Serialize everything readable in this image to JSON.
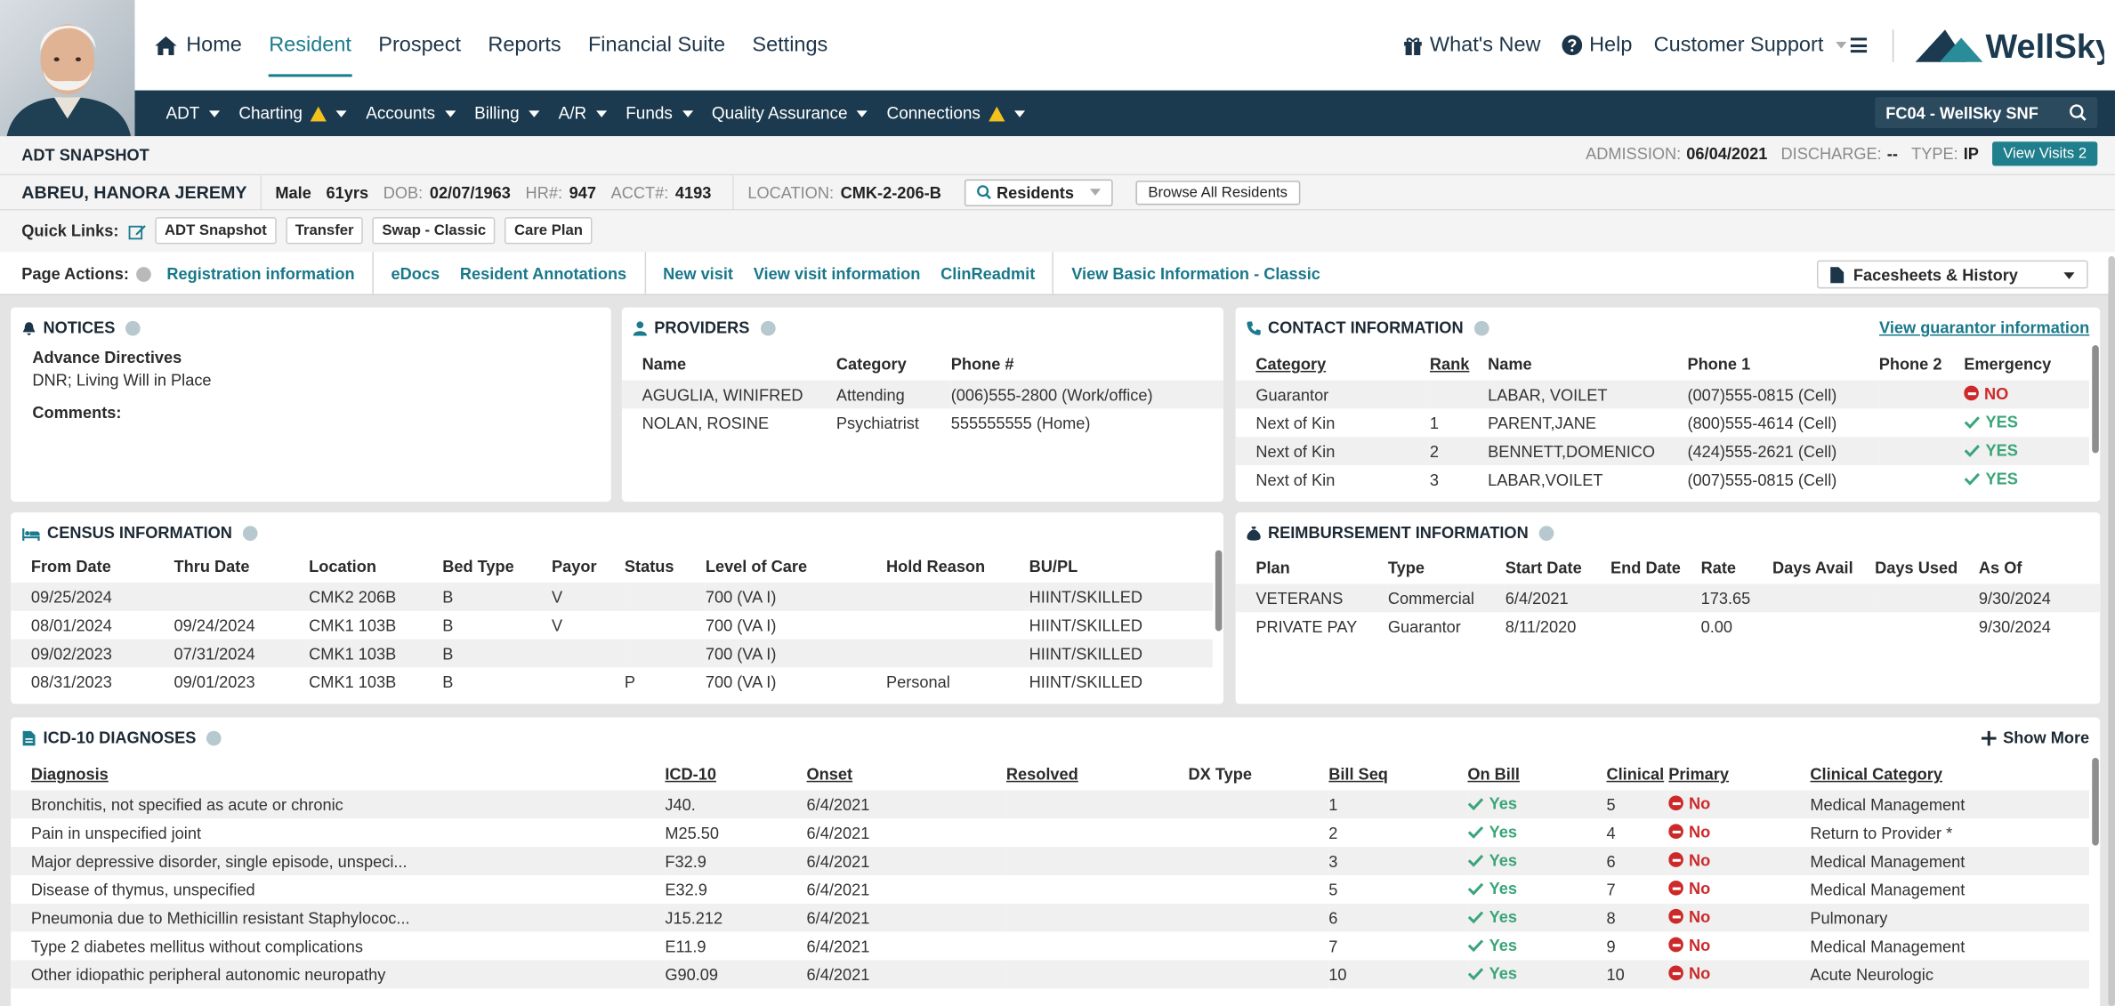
{
  "nav": {
    "primary": [
      "Home",
      "Resident",
      "Prospect",
      "Reports",
      "Financial Suite",
      "Settings"
    ],
    "right": [
      "What's New",
      "Help",
      "Customer Support"
    ],
    "brand": "WellSky",
    "secondary": [
      "ADT",
      "Charting",
      "Accounts",
      "Billing",
      "A/R",
      "Funds",
      "Quality Assurance",
      "Connections"
    ],
    "facility": "FC04 - WellSky SNF"
  },
  "header": {
    "title": "ADT SNAPSHOT",
    "admission_label": "ADMISSION:",
    "admission": "06/04/2021",
    "discharge_label": "DISCHARGE:",
    "discharge": "--",
    "type_label": "TYPE:",
    "type": "IP",
    "view_visits": "View Visits 2"
  },
  "resident": {
    "name": "ABREU, HANORA JEREMY",
    "sex": "Male",
    "age": "61yrs",
    "dob_label": "DOB:",
    "dob": "02/07/1963",
    "hr_label": "HR#:",
    "hr": "947",
    "acct_label": "ACCT#:",
    "acct": "4193",
    "location_label": "LOCATION:",
    "location": "CMK-2-206-B",
    "residents_button": "Residents",
    "browse_button": "Browse All Residents"
  },
  "quick_links": {
    "label": "Quick Links:",
    "links": [
      "ADT Snapshot",
      "Transfer",
      "Swap - Classic",
      "Care Plan"
    ]
  },
  "page_actions": {
    "label": "Page Actions:",
    "groups": [
      [
        "Registration information"
      ],
      [
        "eDocs",
        "Resident Annotations"
      ],
      [
        "New visit",
        "View visit information",
        "ClinReadmit"
      ],
      [
        "View Basic Information - Classic"
      ]
    ],
    "dropdown": "Facesheets & History"
  },
  "notices": {
    "title": "NOTICES",
    "heading": "Advance Directives",
    "text": "DNR; Living Will in Place",
    "comments": "Comments:"
  },
  "providers": {
    "title": "PROVIDERS",
    "columns": [
      "Name",
      "Category",
      "Phone #"
    ],
    "rows": [
      [
        "AGUGLIA, WINIFRED",
        "Attending",
        "(006)555-2800 (Work/office)"
      ],
      [
        "NOLAN, ROSINE",
        "Psychiatrist",
        "555555555 (Home)"
      ]
    ]
  },
  "contact": {
    "title": "CONTACT INFORMATION",
    "link": "View guarantor information",
    "columns": [
      "Category",
      "Rank",
      "Name",
      "Phone 1",
      "Phone 2",
      "Emergency"
    ],
    "rows": [
      [
        "Guarantor",
        null,
        "LABAR, VOILET",
        "(007)555-0815 (Cell)",
        null,
        "NO"
      ],
      [
        "Next of Kin",
        "1",
        "PARENT,JANE",
        "(800)555-4614 (Cell)",
        null,
        "YES"
      ],
      [
        "Next of Kin",
        "2",
        "BENNETT,DOMENICO",
        "(424)555-2621 (Cell)",
        null,
        "YES"
      ],
      [
        "Next of Kin",
        "3",
        "LABAR,VOILET",
        "(007)555-0815 (Cell)",
        null,
        "YES"
      ]
    ]
  },
  "census": {
    "title": "CENSUS INFORMATION",
    "columns": [
      "From Date",
      "Thru Date",
      "Location",
      "Bed Type",
      "Payor",
      "Status",
      "Level of Care",
      "Hold Reason",
      "BU/PL"
    ],
    "rows": [
      [
        "09/25/2024",
        null,
        "CMK2 206B",
        "B",
        "V",
        null,
        "700 (VA I)",
        null,
        "HIINT/SKILLED"
      ],
      [
        "08/01/2024",
        "09/24/2024",
        "CMK1 103B",
        "B",
        "V",
        null,
        "700 (VA I)",
        null,
        "HIINT/SKILLED"
      ],
      [
        "09/02/2023",
        "07/31/2024",
        "CMK1 103B",
        "B",
        null,
        null,
        "700 (VA I)",
        null,
        "HIINT/SKILLED"
      ],
      [
        "08/31/2023",
        "09/01/2023",
        "CMK1 103B",
        "B",
        null,
        "P",
        "700 (VA I)",
        "Personal",
        "HIINT/SKILLED"
      ]
    ]
  },
  "reimbursement": {
    "title": "REIMBURSEMENT INFORMATION",
    "columns": [
      "Plan",
      "Type",
      "Start Date",
      "End Date",
      "Rate",
      "Days Avail",
      "Days Used",
      "As Of"
    ],
    "rows": [
      [
        "VETERANS",
        "Commercial",
        "6/4/2021",
        null,
        "173.65",
        null,
        null,
        "9/30/2024"
      ],
      [
        "PRIVATE PAY",
        "Guarantor",
        "8/11/2020",
        null,
        "0.00",
        null,
        null,
        "9/30/2024"
      ]
    ]
  },
  "diagnoses": {
    "title": "ICD-10 DIAGNOSES",
    "show_more": "Show More",
    "columns": [
      "Diagnosis",
      "ICD-10",
      "Onset",
      "Resolved",
      "DX Type",
      "Bill Seq",
      "On Bill",
      "Clinical",
      "Primary",
      "Clinical Category"
    ],
    "rows": [
      [
        "Bronchitis, not specified as acute or chronic",
        "J40.",
        "6/4/2021",
        null,
        null,
        "1",
        "Yes",
        "5",
        "No",
        "Medical Management"
      ],
      [
        "Pain in unspecified joint",
        "M25.50",
        "6/4/2021",
        null,
        null,
        "2",
        "Yes",
        "4",
        "No",
        "Return to Provider *"
      ],
      [
        "Major depressive disorder, single episode, unspeci...",
        "F32.9",
        "6/4/2021",
        null,
        null,
        "3",
        "Yes",
        "6",
        "No",
        "Medical Management"
      ],
      [
        "Disease of thymus, unspecified",
        "E32.9",
        "6/4/2021",
        null,
        null,
        "5",
        "Yes",
        "7",
        "No",
        "Medical Management"
      ],
      [
        "Pneumonia due to Methicillin resistant Staphylococ...",
        "J15.212",
        "6/4/2021",
        null,
        null,
        "6",
        "Yes",
        "8",
        "No",
        "Pulmonary"
      ],
      [
        "Type 2 diabetes mellitus without complications",
        "E11.9",
        "6/4/2021",
        null,
        null,
        "7",
        "Yes",
        "9",
        "No",
        "Medical Management"
      ],
      [
        "Other idiopathic peripheral autonomic neuropathy",
        "G90.09",
        "6/4/2021",
        null,
        null,
        "10",
        "Yes",
        "10",
        "No",
        "Acute Neurologic"
      ]
    ]
  }
}
